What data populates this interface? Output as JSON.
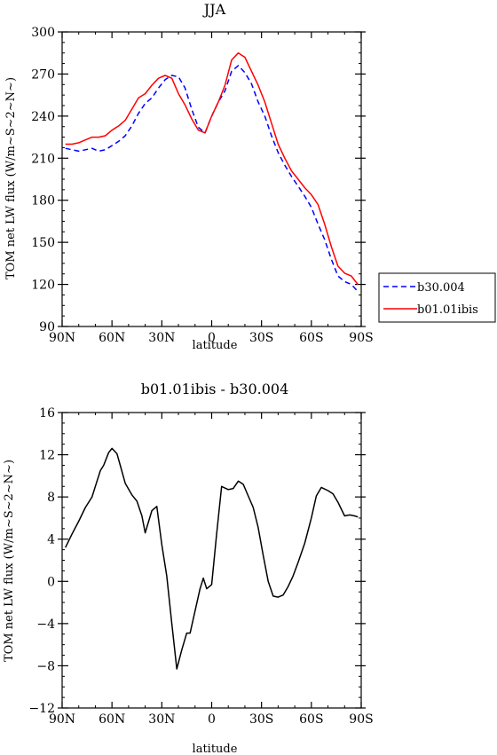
{
  "chart_data": [
    {
      "type": "line",
      "title": "JJA",
      "xlabel": "latitude",
      "ylabel": "TOM net LW flux (W/m~S~2~N~)",
      "xlim": [
        -90,
        90
      ],
      "ylim": [
        90,
        300
      ],
      "x_ticks": [
        -90,
        -60,
        -30,
        0,
        30,
        60,
        90
      ],
      "x_tick_labels": [
        "90N",
        "60N",
        "30N",
        "0",
        "30S",
        "60S",
        "90S"
      ],
      "y_ticks": [
        90,
        120,
        150,
        180,
        210,
        240,
        270,
        300
      ],
      "y_tick_labels": [
        "90",
        "120",
        "150",
        "180",
        "210",
        "240",
        "270",
        "300"
      ],
      "legend_position": "outside-right",
      "series": [
        {
          "name": "b30.004",
          "color": "#0000ff",
          "dash": "dashed",
          "x": [
            -88,
            -84,
            -80,
            -76,
            -72,
            -68,
            -64,
            -60,
            -56,
            -52,
            -48,
            -44,
            -40,
            -36,
            -32,
            -28,
            -24,
            -20,
            -16,
            -12,
            -8,
            -4,
            0,
            4,
            8,
            12,
            16,
            20,
            24,
            28,
            32,
            36,
            40,
            44,
            48,
            52,
            56,
            60,
            64,
            68,
            72,
            76,
            80,
            84,
            88
          ],
          "values": [
            217,
            216,
            215,
            216,
            217,
            215,
            216,
            219,
            222,
            226,
            233,
            242,
            249,
            253,
            260,
            266,
            269,
            268,
            260,
            245,
            232,
            228,
            240,
            250,
            258,
            272,
            276,
            271,
            263,
            250,
            240,
            226,
            214,
            205,
            197,
            190,
            183,
            175,
            163,
            152,
            138,
            126,
            122,
            120,
            115
          ]
        },
        {
          "name": "b01.01ibis",
          "color": "#ff0000",
          "dash": "solid",
          "x": [
            -88,
            -84,
            -80,
            -76,
            -72,
            -68,
            -64,
            -60,
            -56,
            -52,
            -48,
            -44,
            -40,
            -36,
            -32,
            -28,
            -24,
            -20,
            -16,
            -12,
            -8,
            -4,
            0,
            4,
            8,
            12,
            16,
            20,
            24,
            28,
            32,
            36,
            40,
            44,
            48,
            52,
            56,
            60,
            64,
            68,
            72,
            76,
            80,
            84,
            88
          ],
          "values": [
            220,
            220,
            221,
            223,
            225,
            225,
            226,
            230,
            233,
            237,
            245,
            253,
            256,
            262,
            267,
            269,
            267,
            256,
            248,
            238,
            230,
            228,
            240,
            250,
            262,
            280,
            285,
            282,
            272,
            262,
            250,
            235,
            220,
            210,
            201,
            195,
            189,
            184,
            177,
            163,
            147,
            133,
            128,
            126,
            120
          ]
        }
      ]
    },
    {
      "type": "line",
      "title": "b01.01ibis - b30.004",
      "xlabel": "latitude",
      "ylabel": "TOM net LW flux (W/m~S~2~N~)",
      "xlim": [
        -90,
        90
      ],
      "ylim": [
        -12,
        16
      ],
      "x_ticks": [
        -90,
        -60,
        -30,
        0,
        30,
        60,
        90
      ],
      "x_tick_labels": [
        "90N",
        "60N",
        "30N",
        "0",
        "30S",
        "60S",
        "90S"
      ],
      "y_ticks": [
        -12,
        -8,
        -4,
        0,
        4,
        8,
        12,
        16
      ],
      "y_tick_labels": [
        "−12",
        "−8",
        "−4",
        "0",
        "4",
        "8",
        "12",
        "16"
      ],
      "series": [
        {
          "color": "#000000",
          "dash": "solid",
          "x": [
            -88,
            -84,
            -80,
            -76,
            -72,
            -70,
            -67,
            -65,
            -62,
            -60,
            -57,
            -55,
            -52,
            -48,
            -45,
            -42,
            -40,
            -36,
            -33,
            -30,
            -27,
            -24,
            -21,
            -18,
            -15,
            -13,
            -10,
            -7,
            -5,
            -3,
            0,
            3,
            6,
            10,
            13,
            16,
            19,
            22,
            25,
            28,
            31,
            34,
            37,
            40,
            43,
            46,
            49,
            52,
            56,
            60,
            63,
            66,
            70,
            73,
            76,
            80,
            83,
            86,
            88
          ],
          "values": [
            3.2,
            4.5,
            5.7,
            7.0,
            8.0,
            9.0,
            10.5,
            11.0,
            12.2,
            12.6,
            12.1,
            11.0,
            9.3,
            8.2,
            7.6,
            6.2,
            4.6,
            6.7,
            7.1,
            3.5,
            0.5,
            -4.0,
            -8.3,
            -6.5,
            -4.9,
            -4.9,
            -2.8,
            -0.7,
            0.3,
            -0.7,
            -0.3,
            4.5,
            9.0,
            8.7,
            8.8,
            9.5,
            9.2,
            8.1,
            7.0,
            5.1,
            2.5,
            0.0,
            -1.4,
            -1.5,
            -1.3,
            -0.5,
            0.5,
            1.8,
            3.6,
            6.0,
            8.1,
            8.9,
            8.6,
            8.3,
            7.5,
            6.2,
            6.3,
            6.2,
            6.1
          ]
        }
      ]
    }
  ]
}
